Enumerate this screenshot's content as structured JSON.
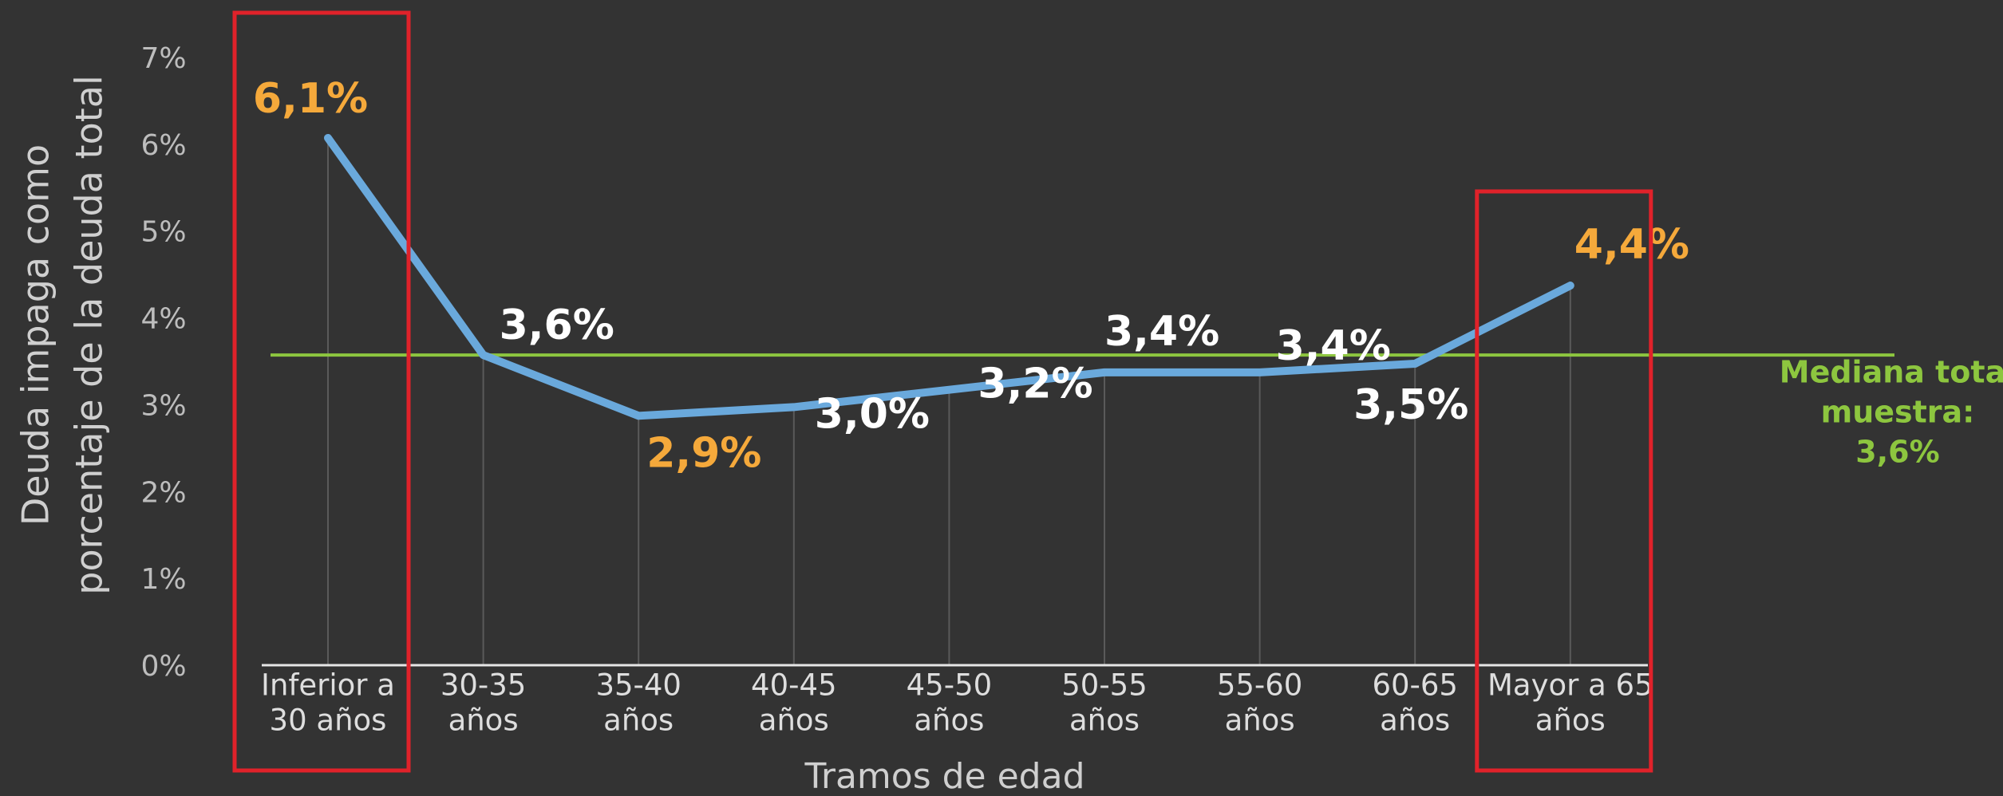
{
  "chart_data": {
    "type": "line",
    "y_axis_label": [
      "Deuda impaga como",
      "porcentaje de la deuda total"
    ],
    "x_axis_label": "Tramos de edad",
    "categories": [
      [
        "Inferior a",
        "30 años"
      ],
      [
        "30-35",
        "años"
      ],
      [
        "35-40",
        "años"
      ],
      [
        "40-45",
        "años"
      ],
      [
        "45-50",
        "años"
      ],
      [
        "50-55",
        "años"
      ],
      [
        "55-60",
        "años"
      ],
      [
        "60-65",
        "años"
      ],
      [
        "Mayor a 65",
        "años"
      ]
    ],
    "values": [
      6.1,
      3.6,
      2.9,
      3.0,
      3.2,
      3.4,
      3.4,
      3.5,
      4.4
    ],
    "value_labels": [
      "6,1%",
      "3,6%",
      "2,9%",
      "3,0%",
      "3,2%",
      "3,4%",
      "3,4%",
      "3,5%",
      "4,4%"
    ],
    "value_label_colors": [
      "#f5a93b",
      "#ffffff",
      "#f5a93b",
      "#ffffff",
      "#ffffff",
      "#ffffff",
      "#ffffff",
      "#ffffff",
      "#f5a93b"
    ],
    "color": "#6aa9dc",
    "median": {
      "value": 3.6,
      "label": [
        "Mediana total",
        "muestra:",
        "3,6%"
      ],
      "color": "#8dc63f"
    },
    "highlighted_categories": [
      0,
      8
    ],
    "highlight_color": "#e0222a",
    "ylim": [
      0,
      7
    ],
    "yticks": [
      {
        "value": 0,
        "label": "0%"
      },
      {
        "value": 1,
        "label": "1%"
      },
      {
        "value": 2,
        "label": "2%"
      },
      {
        "value": 3,
        "label": "3%"
      },
      {
        "value": 4,
        "label": "4%"
      },
      {
        "value": 5,
        "label": "5%"
      },
      {
        "value": 6,
        "label": "6%"
      },
      {
        "value": 7,
        "label": "7%"
      }
    ],
    "grid": true
  }
}
